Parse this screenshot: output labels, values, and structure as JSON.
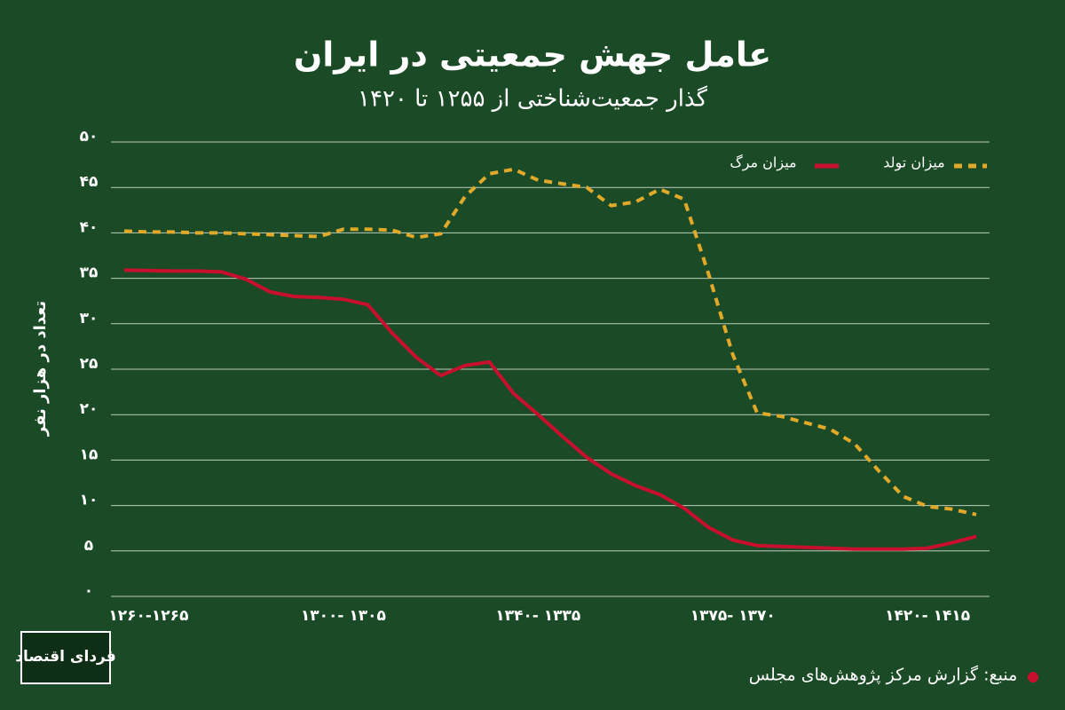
{
  "chart_data": {
    "type": "line",
    "title": "عامل جهش جمعیتی در ایران",
    "subtitle": "گذار جمعیت‌شناختی از ۱۲۵۵ تا ۱۴۲۰",
    "y_label": "تعداد در هزار نفر",
    "source": "منبع: گزارش مرکز پژوهش‌های مجلس",
    "logo_text": "فردای اقتصاد",
    "categories": [
      null,
      "۱۲۶۰-۱۲۶۵",
      null,
      null,
      null,
      null,
      null,
      null,
      null,
      "۱۳۰۰- ۱۳۰۵",
      null,
      null,
      null,
      null,
      null,
      null,
      null,
      "۱۳۴۰- ۱۳۳۵",
      null,
      null,
      null,
      null,
      null,
      null,
      null,
      "۱۳۷۵- ۱۳۷۰",
      null,
      null,
      null,
      null,
      null,
      null,
      null,
      "۱۴۲۰- ۱۴۱۵",
      null,
      null
    ],
    "series": [
      {
        "name": "میزان تولد",
        "color": "#e0a92a",
        "dashed": true,
        "values": [
          40.2,
          40.1,
          40.1,
          40.0,
          40.0,
          39.9,
          39.8,
          39.7,
          39.6,
          40.4,
          40.4,
          40.3,
          39.5,
          39.9,
          44.0,
          46.5,
          47.0,
          45.8,
          45.4,
          45.0,
          43.0,
          43.4,
          44.8,
          43.7,
          35.5,
          26.6,
          20.2,
          19.8,
          19.1,
          18.4,
          16.8,
          13.8,
          11.0,
          9.9,
          9.6,
          9.0
        ]
      },
      {
        "name": "میزان مرگ",
        "color": "#c8102e",
        "dashed": false,
        "values": [
          35.9,
          35.85,
          35.8,
          35.8,
          35.7,
          34.9,
          33.5,
          33.0,
          32.9,
          32.7,
          32.1,
          29.0,
          26.3,
          24.3,
          25.4,
          25.8,
          22.3,
          20.0,
          17.6,
          15.3,
          13.5,
          12.2,
          11.2,
          9.7,
          7.6,
          6.2,
          5.6,
          5.5,
          5.4,
          5.3,
          5.2,
          5.2,
          5.2,
          5.3,
          5.9,
          6.6
        ]
      }
    ],
    "ylim": [
      0,
      50
    ],
    "yticks": [
      {
        "value": 0,
        "label": "۰"
      },
      {
        "value": 5,
        "label": "۵"
      },
      {
        "value": 10,
        "label": "۱۰"
      },
      {
        "value": 15,
        "label": "۱۵"
      },
      {
        "value": 20,
        "label": "۲۰"
      },
      {
        "value": 25,
        "label": "۲۵"
      },
      {
        "value": 30,
        "label": "۳۰"
      },
      {
        "value": 35,
        "label": "۳۵"
      },
      {
        "value": 40,
        "label": "۴۰"
      },
      {
        "value": 45,
        "label": "۴۵"
      },
      {
        "value": 50,
        "label": "۵۰"
      }
    ],
    "grid": true
  }
}
